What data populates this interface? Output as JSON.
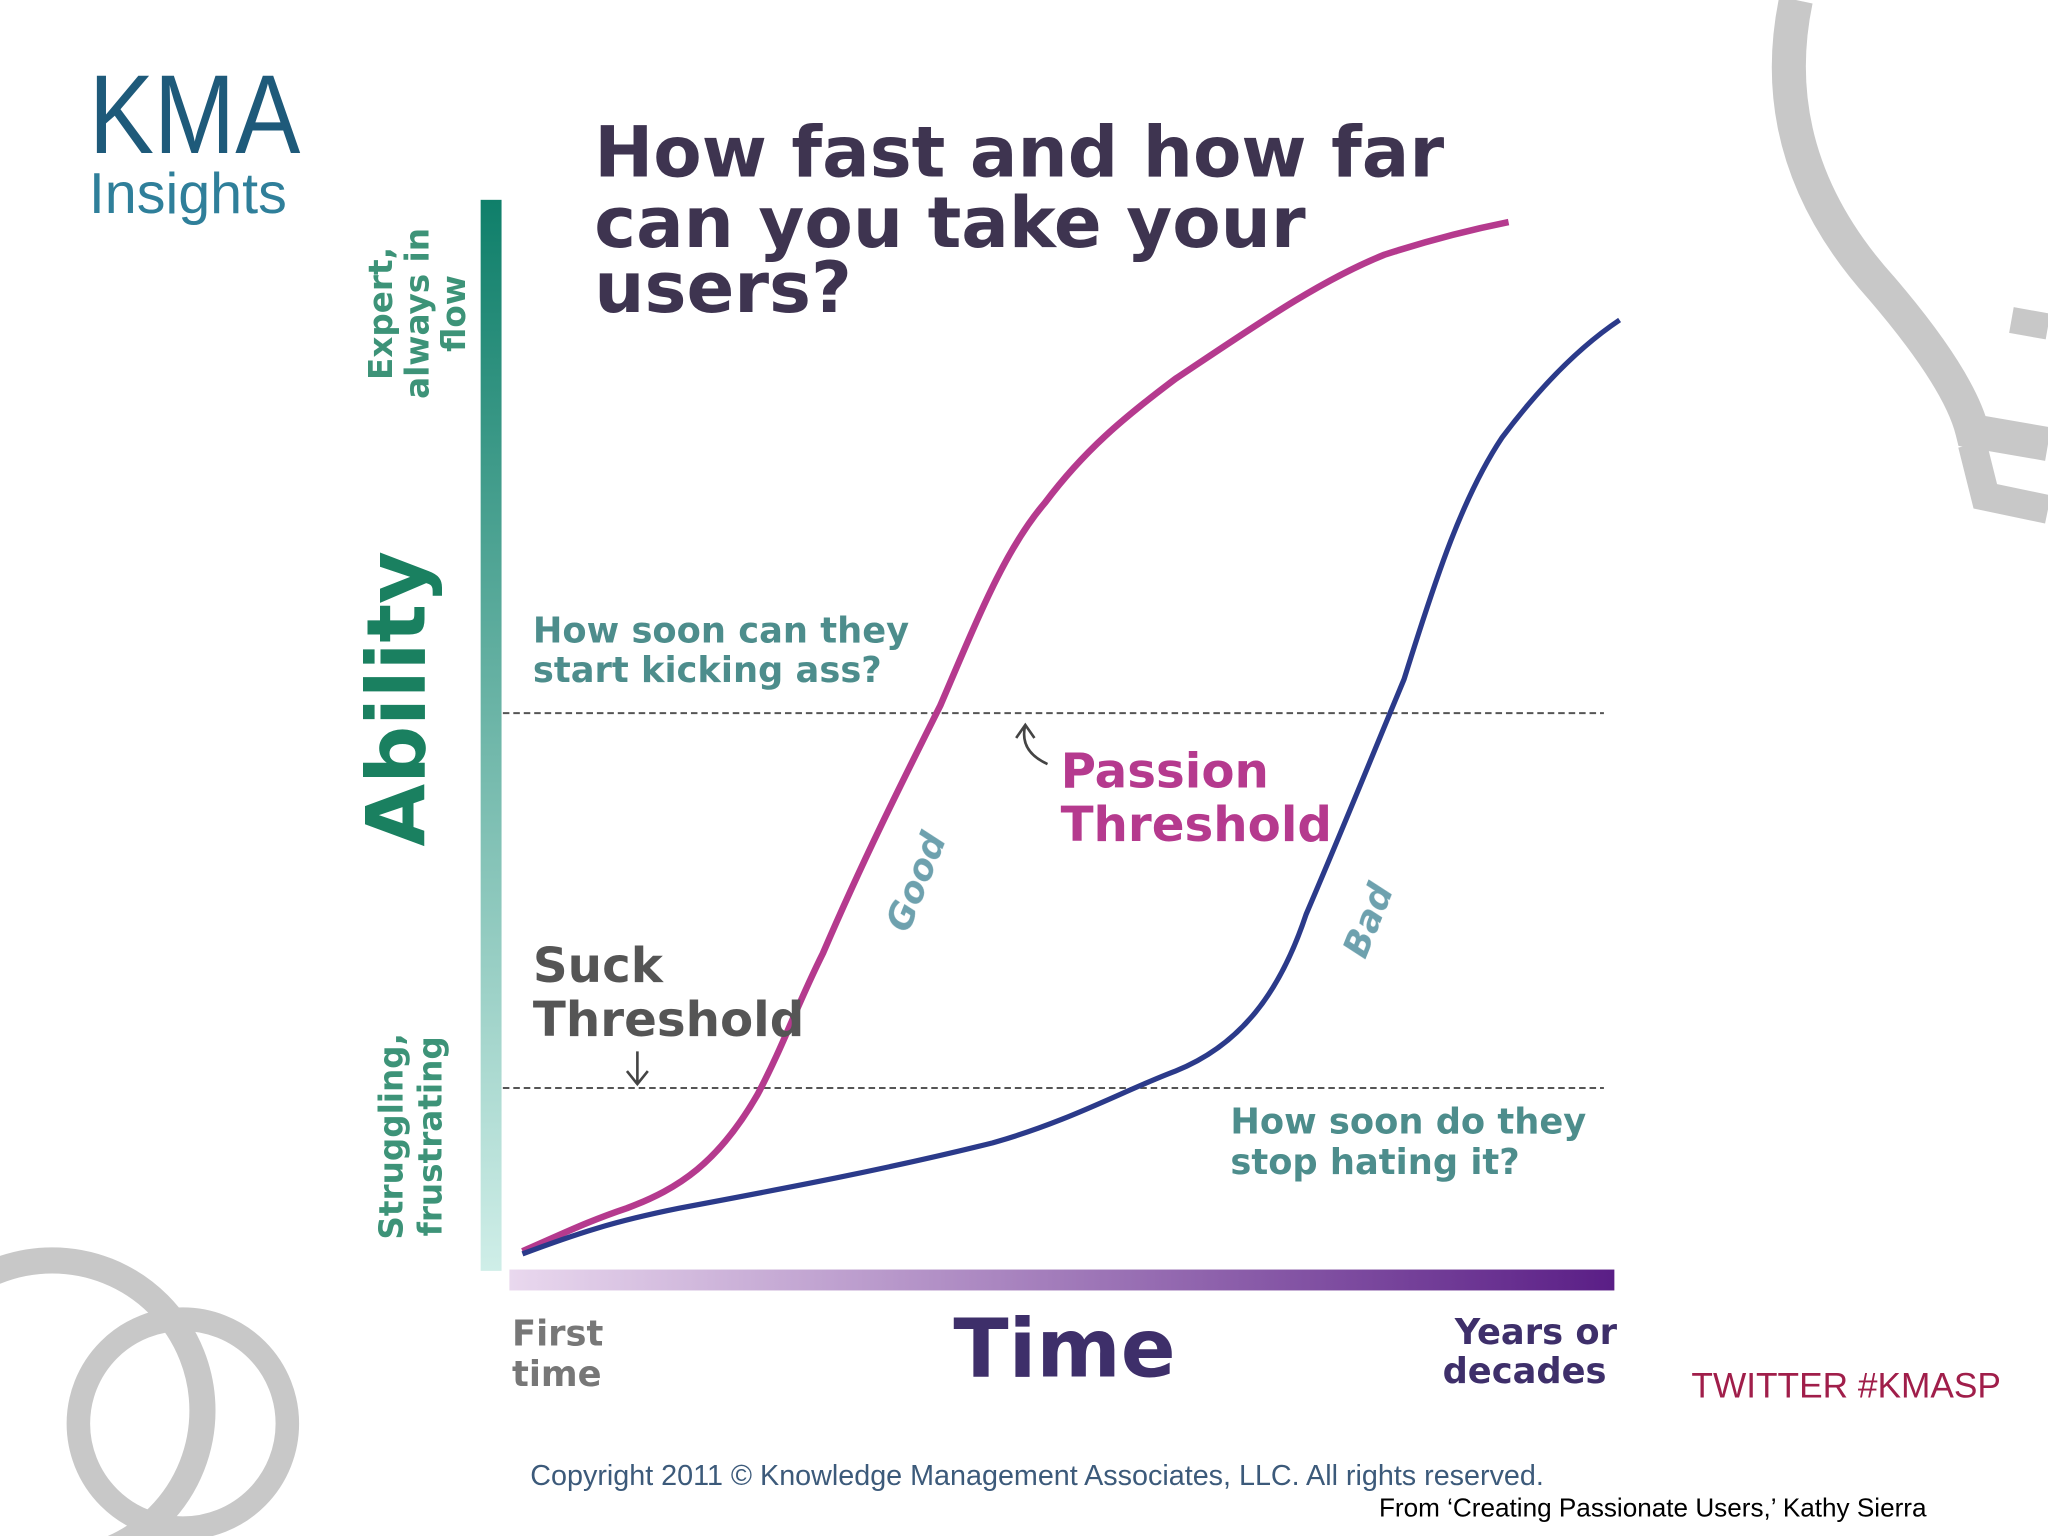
{
  "logo": {
    "brand": "KMA",
    "subtitle": "Insights"
  },
  "diagram": {
    "title": [
      "How fast and how far",
      "can you take your",
      "users?"
    ],
    "y_axis": {
      "label": "Ability",
      "top": [
        "Expert,",
        "always in",
        "flow"
      ],
      "bottom": [
        "Struggling,",
        "frustrating"
      ]
    },
    "x_axis": {
      "label": "Time",
      "start": [
        "First",
        "time"
      ],
      "end": [
        "Years or",
        "decades"
      ]
    },
    "upper_question": [
      "How soon can they",
      "start kicking ass?"
    ],
    "upper_threshold": [
      "Passion",
      "Threshold"
    ],
    "lower_threshold": [
      "Suck",
      "Threshold"
    ],
    "lower_question": [
      "How soon do they",
      "stop hating it?"
    ],
    "curves": [
      "Good",
      "Bad"
    ]
  },
  "twitter": "TWITTER #KMASP",
  "footer": {
    "copyright": "Copyright 2011 © Knowledge Management Associates, LLC.  All rights reserved.",
    "source": "From ‘Creating Passionate Users,’ Kathy Sierra"
  }
}
